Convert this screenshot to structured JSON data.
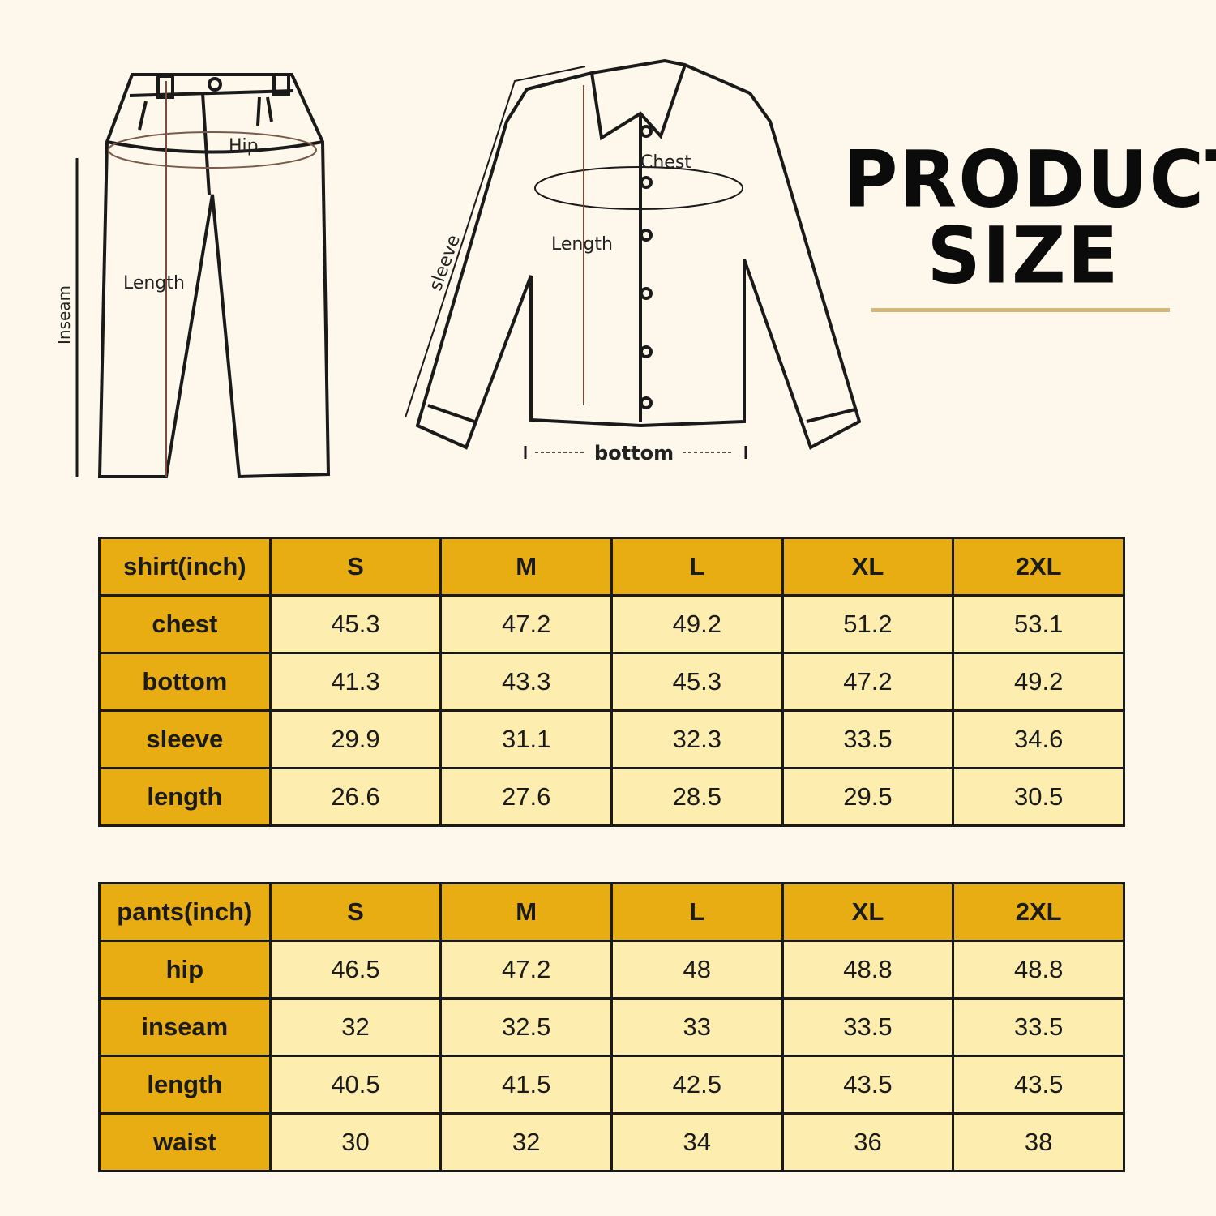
{
  "title": {
    "line1": "PRODUCT",
    "line2": "SIZE"
  },
  "diagram": {
    "pants_labels": {
      "hip": "Hip",
      "length": "Length",
      "inseam": "Inseam"
    },
    "shirt_labels": {
      "chest": "Chest",
      "length": "Length",
      "sleeve": "sleeve",
      "bottom": "bottom"
    }
  },
  "colors": {
    "header": "#e8ad12",
    "cell": "#fdeeb0",
    "background": "#fdf8eb"
  },
  "shirt_table": {
    "header": [
      "shirt(inch)",
      "S",
      "M",
      "L",
      "XL",
      "2XL"
    ],
    "rows": [
      [
        "chest",
        "45.3",
        "47.2",
        "49.2",
        "51.2",
        "53.1"
      ],
      [
        "bottom",
        "41.3",
        "43.3",
        "45.3",
        "47.2",
        "49.2"
      ],
      [
        "sleeve",
        "29.9",
        "31.1",
        "32.3",
        "33.5",
        "34.6"
      ],
      [
        "length",
        "26.6",
        "27.6",
        "28.5",
        "29.5",
        "30.5"
      ]
    ]
  },
  "pants_table": {
    "header": [
      "pants(inch)",
      "S",
      "M",
      "L",
      "XL",
      "2XL"
    ],
    "rows": [
      [
        "hip",
        "46.5",
        "47.2",
        "48",
        "48.8",
        "48.8"
      ],
      [
        "inseam",
        "32",
        "32.5",
        "33",
        "33.5",
        "33.5"
      ],
      [
        "length",
        "40.5",
        "41.5",
        "42.5",
        "43.5",
        "43.5"
      ],
      [
        "waist",
        "30",
        "32",
        "34",
        "36",
        "38"
      ]
    ]
  }
}
